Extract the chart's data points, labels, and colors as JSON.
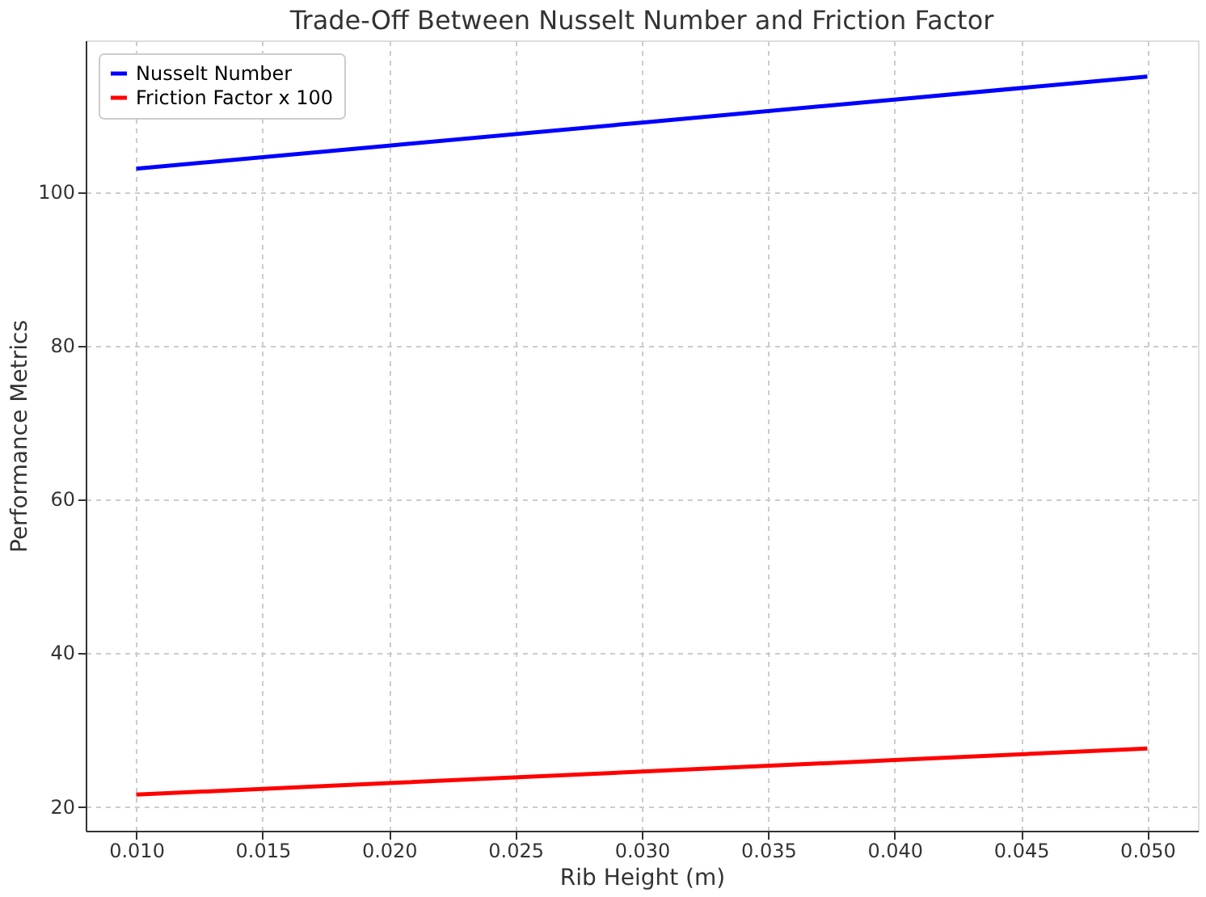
{
  "chart_data": {
    "type": "line",
    "title": "Trade-Off Between Nusselt Number and Friction Factor",
    "xlabel": "Rib Height (m)",
    "ylabel": "Performance Metrics",
    "x": [
      0.01,
      0.02,
      0.03,
      0.04,
      0.05
    ],
    "series": [
      {
        "name": "Nusselt Number",
        "color": "#0000ff",
        "values": [
          103,
          106,
          109,
          112,
          115
        ]
      },
      {
        "name": "Friction Factor x 100",
        "color": "#ff0000",
        "values": [
          21.5,
          23,
          24.5,
          26,
          27.5
        ]
      }
    ],
    "xlim": [
      0.008,
      0.052
    ],
    "ylim": [
      16.8,
      119.7
    ],
    "xticks": [
      {
        "value": 0.01,
        "label": "0.010"
      },
      {
        "value": 0.015,
        "label": "0.015"
      },
      {
        "value": 0.02,
        "label": "0.020"
      },
      {
        "value": 0.025,
        "label": "0.025"
      },
      {
        "value": 0.03,
        "label": "0.030"
      },
      {
        "value": 0.035,
        "label": "0.035"
      },
      {
        "value": 0.04,
        "label": "0.040"
      },
      {
        "value": 0.045,
        "label": "0.045"
      },
      {
        "value": 0.05,
        "label": "0.050"
      }
    ],
    "yticks": [
      20,
      40,
      60,
      80,
      100
    ],
    "grid": true,
    "legend": "top left",
    "line_style": "solid"
  }
}
